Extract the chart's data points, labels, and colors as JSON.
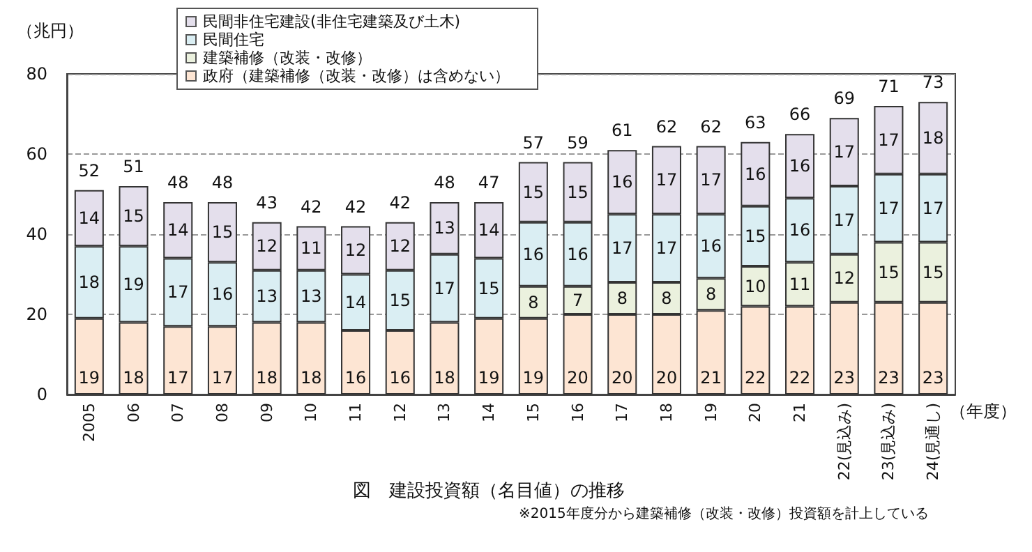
{
  "chart_data": {
    "type": "bar",
    "stacked": true,
    "title": "図　建設投資額（名目値）の推移",
    "ylabel": "（兆円）",
    "xlabel": "（年度）",
    "annotations": [
      "※2015年度分から建築補修（改装・改修）投資額を計上している"
    ],
    "categories": [
      "2005",
      "06",
      "07",
      "08",
      "09",
      "10",
      "11",
      "12",
      "13",
      "14",
      "15",
      "16",
      "17",
      "18",
      "19",
      "20",
      "21",
      "22(見込み)",
      "23(見込み)",
      "24(見通し)"
    ],
    "series": [
      {
        "name": "政府（建築補修（改装・改修）は含めない）",
        "color": "#fde5d3",
        "values": [
          19,
          18,
          17,
          17,
          18,
          18,
          16,
          16,
          18,
          19,
          19,
          20,
          20,
          20,
          21,
          22,
          22,
          23,
          23,
          23
        ]
      },
      {
        "name": "建築補修（改装・改修）",
        "color": "#ebf1de",
        "values": [
          null,
          null,
          null,
          null,
          null,
          null,
          null,
          null,
          null,
          null,
          8,
          7,
          8,
          8,
          8,
          10,
          11,
          12,
          15,
          15
        ]
      },
      {
        "name": "民間住宅",
        "color": "#daeef3",
        "values": [
          18,
          19,
          17,
          16,
          13,
          13,
          14,
          15,
          17,
          15,
          16,
          16,
          17,
          17,
          16,
          15,
          16,
          17,
          17,
          17
        ]
      },
      {
        "name": "民間非住宅建設(非住宅建築及び土木)",
        "color": "#e4dfec",
        "values": [
          14,
          15,
          14,
          15,
          12,
          11,
          12,
          12,
          13,
          14,
          15,
          15,
          16,
          17,
          17,
          16,
          16,
          17,
          17,
          18
        ]
      }
    ],
    "totals": [
      "52",
      "51",
      "48",
      "48",
      "43",
      "42",
      "42",
      "42",
      "48",
      "47",
      "57",
      "59",
      "61",
      "62",
      "62",
      "63",
      "66",
      "69",
      "71",
      "73"
    ],
    "data_labels": true,
    "ylim": [
      0,
      80
    ],
    "yticks": [
      0,
      20,
      40,
      60,
      80
    ],
    "grid": "y",
    "legend": "top"
  }
}
